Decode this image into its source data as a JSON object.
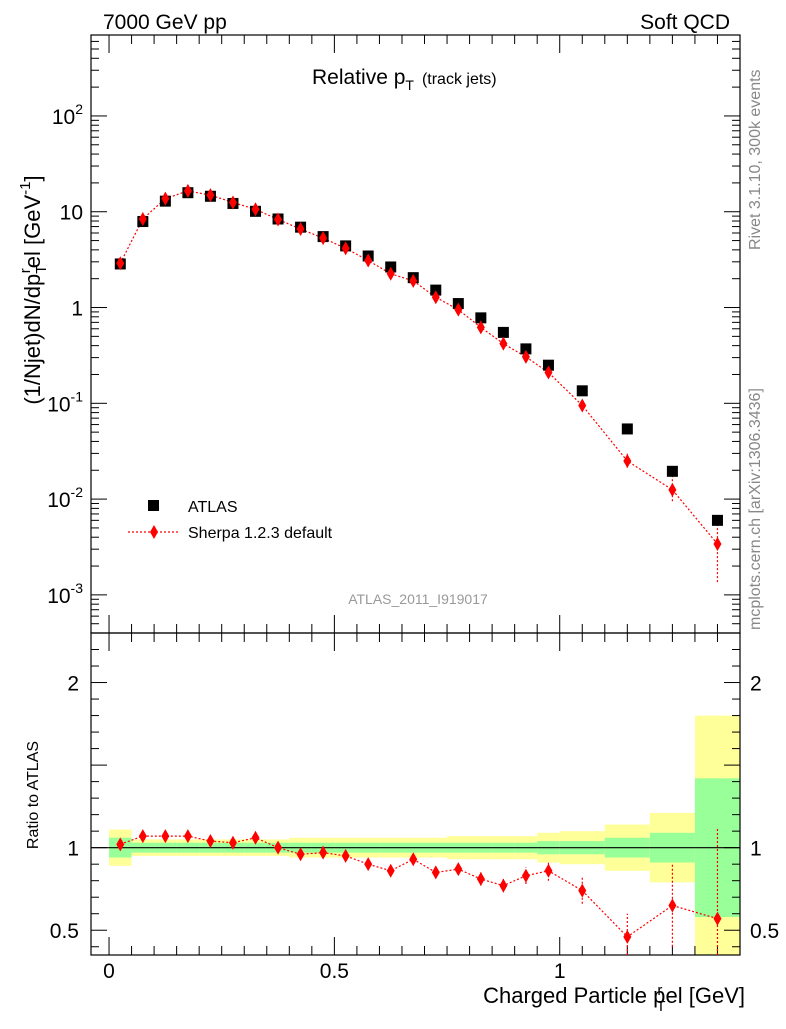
{
  "header": {
    "left": "7000 GeV pp",
    "right": "Soft QCD"
  },
  "side_text": {
    "top": "Rivet 3.1.10,  300k events",
    "bottom": "mcplots.cern.ch [arXiv:1306.3436]"
  },
  "plot_title": {
    "main": "Relative p",
    "sub": "T",
    "suffix": "(track jets)"
  },
  "annotation": "ATLAS_2011_I919017",
  "chart_data": [
    {
      "type": "scatter",
      "panel": "main",
      "ylabel": "(1/Njet)dN/dp",
      "ylabel_sub": "T",
      "ylabel_sup": "r",
      "ylabel_rest": "el [GeV",
      "ylabel_unit_sup": "-1",
      "ylabel_close": "]",
      "yscale": "log",
      "ylim": [
        0.0004,
        700
      ],
      "xlim": [
        -0.04,
        1.4
      ],
      "yticks": [
        {
          "v": 0.001,
          "base": "10",
          "exp": "-3"
        },
        {
          "v": 0.01,
          "base": "10",
          "exp": "-2"
        },
        {
          "v": 0.1,
          "base": "10",
          "exp": "-1"
        },
        {
          "v": 1,
          "base": "1",
          "exp": ""
        },
        {
          "v": 10,
          "base": "10",
          "exp": ""
        },
        {
          "v": 100,
          "base": "10",
          "exp": "2"
        }
      ],
      "legend": [
        "ATLAS",
        "Sherpa 1.2.3 default"
      ],
      "legend_position": "bottom-left",
      "series": [
        {
          "name": "ATLAS",
          "color": "#000000",
          "marker": "square",
          "x": [
            0.025,
            0.075,
            0.125,
            0.175,
            0.225,
            0.275,
            0.325,
            0.375,
            0.425,
            0.475,
            0.525,
            0.575,
            0.625,
            0.675,
            0.725,
            0.775,
            0.825,
            0.875,
            0.925,
            0.975,
            1.05,
            1.15,
            1.25,
            1.35
          ],
          "y": [
            2.85,
            7.9,
            12.9,
            15.8,
            14.5,
            12.2,
            10.1,
            8.4,
            6.9,
            5.5,
            4.4,
            3.45,
            2.65,
            2.05,
            1.52,
            1.1,
            0.78,
            0.55,
            0.37,
            0.25,
            0.135,
            0.054,
            0.0195,
            0.006
          ]
        },
        {
          "name": "Sherpa 1.2.3 default",
          "color": "#ff0000",
          "marker": "diamond",
          "line": "dotted",
          "x": [
            0.025,
            0.075,
            0.125,
            0.175,
            0.225,
            0.275,
            0.325,
            0.375,
            0.425,
            0.475,
            0.525,
            0.575,
            0.625,
            0.675,
            0.725,
            0.775,
            0.825,
            0.875,
            0.925,
            0.975,
            1.05,
            1.15,
            1.25,
            1.35
          ],
          "y": [
            2.9,
            8.4,
            13.7,
            16.5,
            14.9,
            12.5,
            10.6,
            8.3,
            6.6,
            5.3,
            4.15,
            3.1,
            2.25,
            1.9,
            1.28,
            0.95,
            0.62,
            0.42,
            0.305,
            0.21,
            0.095,
            0.025,
            0.0125,
            0.0034
          ],
          "yerr_rel": [
            0.02,
            0.02,
            0.02,
            0.02,
            0.02,
            0.02,
            0.02,
            0.03,
            0.03,
            0.03,
            0.04,
            0.05,
            0.05,
            0.05,
            0.06,
            0.06,
            0.07,
            0.08,
            0.08,
            0.1,
            0.12,
            0.25,
            0.4,
            1.0
          ]
        }
      ]
    },
    {
      "type": "scatter",
      "panel": "ratio",
      "ylabel": "Ratio to ATLAS",
      "xlabel_main": "Charged Particle p",
      "xlabel_sup": "r",
      "xlabel_sub": "T",
      "xlabel_rest": "el [GeV]",
      "ylim": [
        0.35,
        2.3
      ],
      "xlim": [
        -0.04,
        1.4
      ],
      "yticks": [
        0.5,
        1,
        2
      ],
      "ytick_labels": [
        "0.5",
        "1",
        "2"
      ],
      "xticks": [
        0,
        0.5,
        1
      ],
      "xtick_labels": [
        "0",
        "0.5",
        "1"
      ],
      "bands": {
        "x_edges": [
          0.0,
          0.05,
          0.1,
          0.15,
          0.2,
          0.25,
          0.3,
          0.35,
          0.4,
          0.45,
          0.5,
          0.55,
          0.6,
          0.65,
          0.7,
          0.75,
          0.8,
          0.85,
          0.9,
          0.95,
          1.0,
          1.1,
          1.2,
          1.3,
          1.4
        ],
        "stat_half": [
          0.06,
          0.03,
          0.03,
          0.03,
          0.03,
          0.03,
          0.03,
          0.03,
          0.03,
          0.03,
          0.03,
          0.03,
          0.03,
          0.03,
          0.03,
          0.03,
          0.03,
          0.03,
          0.03,
          0.04,
          0.04,
          0.06,
          0.09,
          0.42
        ],
        "total_half": [
          0.11,
          0.05,
          0.05,
          0.05,
          0.05,
          0.05,
          0.05,
          0.05,
          0.06,
          0.06,
          0.06,
          0.06,
          0.06,
          0.06,
          0.06,
          0.07,
          0.07,
          0.07,
          0.07,
          0.09,
          0.1,
          0.14,
          0.21,
          0.8
        ],
        "green": "#99ff99",
        "yellow": "#ffff99"
      },
      "series": [
        {
          "name": "Sherpa 1.2.3 default",
          "color": "#ff0000",
          "marker": "diamond",
          "line": "dotted",
          "x": [
            0.025,
            0.075,
            0.125,
            0.175,
            0.225,
            0.275,
            0.325,
            0.375,
            0.425,
            0.475,
            0.525,
            0.575,
            0.625,
            0.675,
            0.725,
            0.775,
            0.825,
            0.875,
            0.925,
            0.975,
            1.05,
            1.15,
            1.25,
            1.35
          ],
          "y": [
            1.02,
            1.07,
            1.07,
            1.07,
            1.04,
            1.03,
            1.06,
            1.0,
            0.96,
            0.97,
            0.95,
            0.9,
            0.86,
            0.93,
            0.85,
            0.87,
            0.81,
            0.77,
            0.83,
            0.86,
            0.74,
            0.46,
            0.65,
            0.57
          ],
          "yerr": [
            0.02,
            0.02,
            0.02,
            0.02,
            0.02,
            0.02,
            0.02,
            0.02,
            0.02,
            0.02,
            0.02,
            0.03,
            0.03,
            0.03,
            0.03,
            0.03,
            0.04,
            0.04,
            0.05,
            0.06,
            0.08,
            0.14,
            0.25,
            0.55
          ]
        }
      ]
    }
  ]
}
